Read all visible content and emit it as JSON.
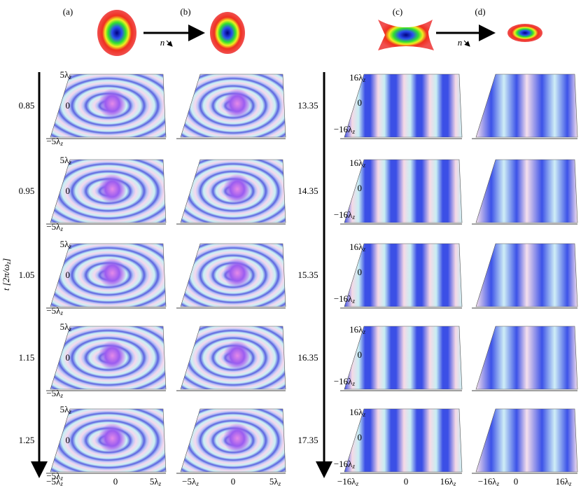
{
  "header": {
    "panels": [
      "(a)",
      "(b)",
      "(c)",
      "(d)"
    ],
    "arrows": [
      {
        "label": "n"
      },
      {
        "label": "n"
      }
    ]
  },
  "time_axis": {
    "main": "t [2π/ω",
    "sub": "z",
    "end": "]"
  },
  "left": {
    "times": [
      0.85,
      0.95,
      1.05,
      1.15,
      1.25
    ],
    "y_ticks": [
      {
        "text": "5λ",
        "sub": "z"
      },
      {
        "text": "0"
      },
      {
        "text": "−5λ",
        "sub": "z"
      }
    ],
    "x_ticks": [
      {
        "text": "−5λ",
        "sub": "z"
      },
      {
        "text": "0"
      },
      {
        "text": "5λ",
        "sub": "z"
      }
    ]
  },
  "right": {
    "times": [
      13.35,
      14.35,
      15.35,
      16.35,
      17.35
    ],
    "y_ticks": [
      {
        "text": "16λ",
        "sub": "z"
      },
      {
        "text": "0"
      },
      {
        "text": "−16λ",
        "sub": "z"
      }
    ],
    "x_ticks": [
      {
        "text": "−16λ",
        "sub": "z"
      },
      {
        "text": "0"
      },
      {
        "text": "16λ",
        "sub": "z"
      }
    ]
  }
}
